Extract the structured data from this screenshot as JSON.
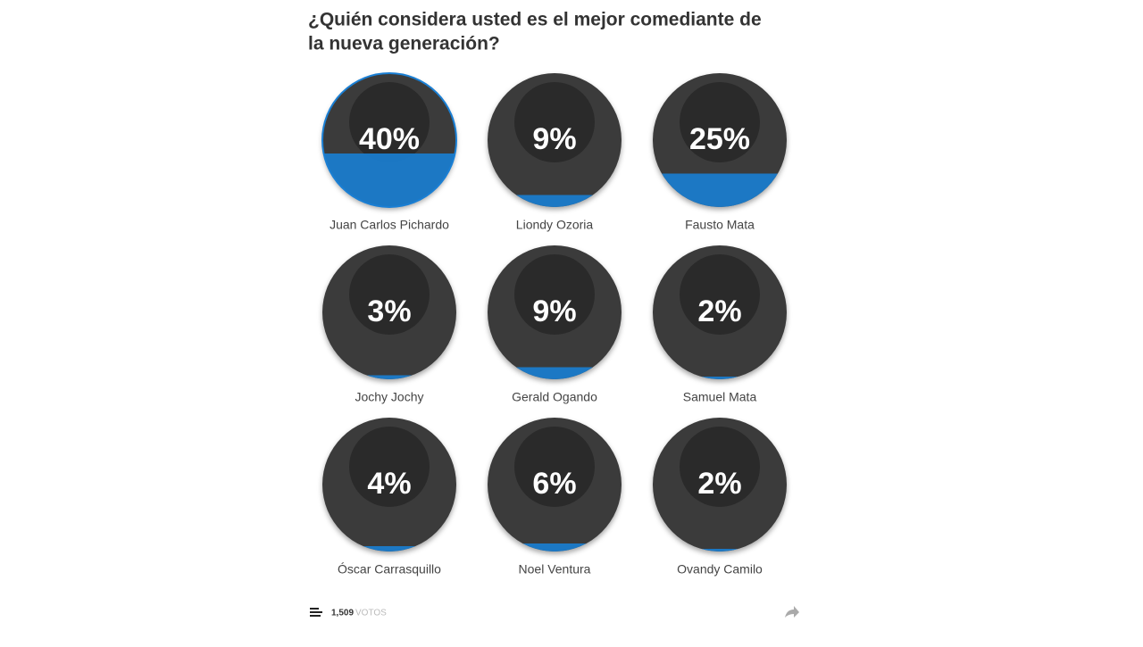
{
  "poll": {
    "title_lines": [
      "¿Quién considera usted es el mejor comediante de",
      "la nueva generación?"
    ],
    "options": [
      {
        "name": "Juan Carlos Pichardo",
        "percent": {
          "value": 40,
          "label": "40%"
        },
        "selected": true
      },
      {
        "name": "Liondy Ozoria",
        "percent": {
          "value": 9,
          "label": "9%"
        }
      },
      {
        "name": "Fausto Mata",
        "percent": {
          "value": 25,
          "label": "25%"
        }
      },
      {
        "name": "Jochy Jochy",
        "percent": {
          "value": 3,
          "label": "3%"
        }
      },
      {
        "name": "Gerald Ogando",
        "percent": {
          "value": 9,
          "label": "9%"
        }
      },
      {
        "name": "Samuel Mata",
        "percent": {
          "value": 2,
          "label": "2%"
        }
      },
      {
        "name": "Óscar Carrasquillo",
        "percent": {
          "value": 4,
          "label": "4%"
        }
      },
      {
        "name": "Noel Ventura",
        "percent": {
          "value": 6,
          "label": "6%"
        }
      },
      {
        "name": "Ovandy Camilo",
        "percent": {
          "value": 2,
          "label": "2%"
        }
      }
    ],
    "votes": "1,509",
    "votes_unit": "VOTOS"
  }
}
